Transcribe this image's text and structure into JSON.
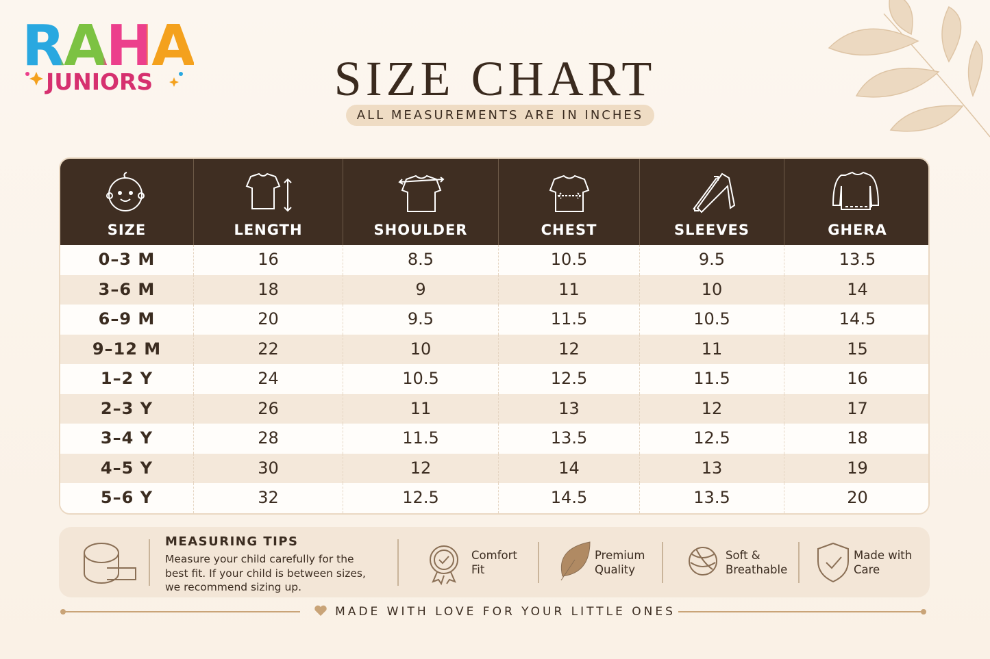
{
  "logo": {
    "brand": "RAHA",
    "sub": "JUNIORS"
  },
  "header": {
    "title": "SIZE CHART",
    "subtitle": "ALL MEASUREMENTS ARE IN INCHES"
  },
  "table": {
    "columns": [
      "SIZE",
      "LENGTH",
      "SHOULDER",
      "CHEST",
      "SLEEVES",
      "GHERA"
    ],
    "rows": [
      [
        "0–3 M",
        "16",
        "8.5",
        "10.5",
        "9.5",
        "13.5"
      ],
      [
        "3–6 M",
        "18",
        "9",
        "11",
        "10",
        "14"
      ],
      [
        "6–9 M",
        "20",
        "9.5",
        "11.5",
        "10.5",
        "14.5"
      ],
      [
        "9–12 M",
        "22",
        "10",
        "12",
        "11",
        "15"
      ],
      [
        "1–2 Y",
        "24",
        "10.5",
        "12.5",
        "11.5",
        "16"
      ],
      [
        "2–3 Y",
        "26",
        "11",
        "13",
        "12",
        "17"
      ],
      [
        "3–4 Y",
        "28",
        "11.5",
        "13.5",
        "12.5",
        "18"
      ],
      [
        "4–5 Y",
        "30",
        "12",
        "14",
        "13",
        "19"
      ],
      [
        "5–6 Y",
        "32",
        "12.5",
        "14.5",
        "13.5",
        "20"
      ]
    ]
  },
  "tips": {
    "title": "MEASURING TIPS",
    "text": "Measure your child carefully for the best fit. If your child is between sizes, we recommend sizing up."
  },
  "features": [
    {
      "lines": [
        "Comfort",
        "Fit"
      ]
    },
    {
      "lines": [
        "Premium",
        "Quality"
      ]
    },
    {
      "lines": [
        "Soft &",
        "Breathable"
      ]
    },
    {
      "lines": [
        "Made with",
        "Care"
      ]
    }
  ],
  "footer": "MADE WITH LOVE FOR YOUR LITTLE ONES"
}
